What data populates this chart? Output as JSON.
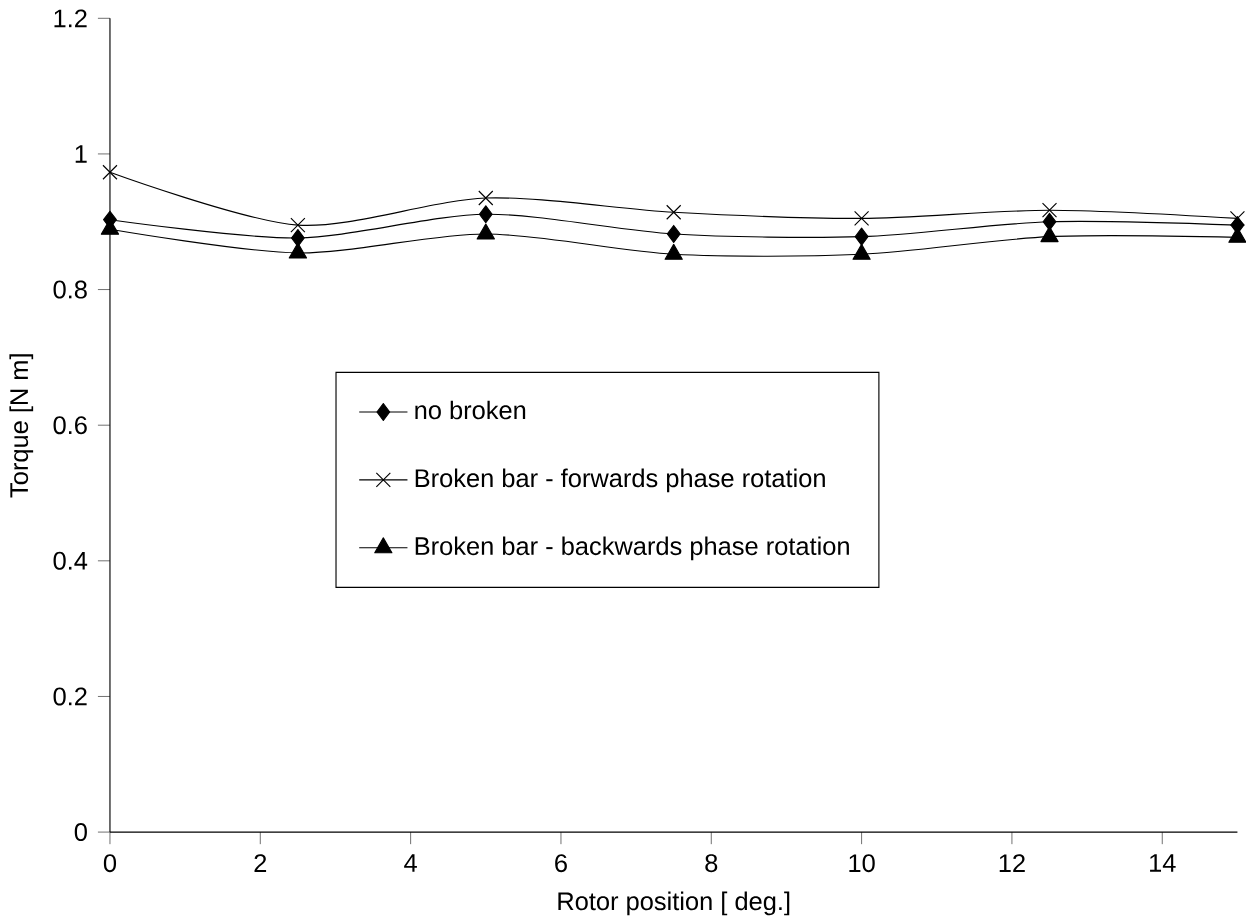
{
  "chart_data": {
    "type": "line",
    "xlabel": "Rotor position [ deg.]",
    "ylabel": "Torque [N m]",
    "x": [
      0,
      2.5,
      5,
      7.5,
      10,
      12.5,
      15
    ],
    "series": [
      {
        "name": "no broken",
        "color": "#000000",
        "marker": "diamond",
        "values": [
          0.903,
          0.876,
          0.911,
          0.882,
          0.878,
          0.9,
          0.895
        ]
      },
      {
        "name": "Broken bar - forwards phase rotation",
        "color": "#000000",
        "marker": "cross",
        "values": [
          0.973,
          0.895,
          0.935,
          0.914,
          0.905,
          0.917,
          0.905
        ]
      },
      {
        "name": "Broken bar - backwards phase rotation",
        "color": "#000000",
        "marker": "triangle",
        "values": [
          0.889,
          0.854,
          0.882,
          0.852,
          0.852,
          0.878,
          0.877
        ]
      }
    ],
    "xlim": [
      0,
      15
    ],
    "xticks": [
      0,
      2,
      4,
      6,
      8,
      10,
      12,
      14
    ],
    "ylim": [
      0,
      1.2
    ],
    "yticks": [
      0,
      0.2,
      0.4,
      0.6,
      0.8,
      1,
      1.2
    ],
    "legend": "center",
    "grid": false
  }
}
